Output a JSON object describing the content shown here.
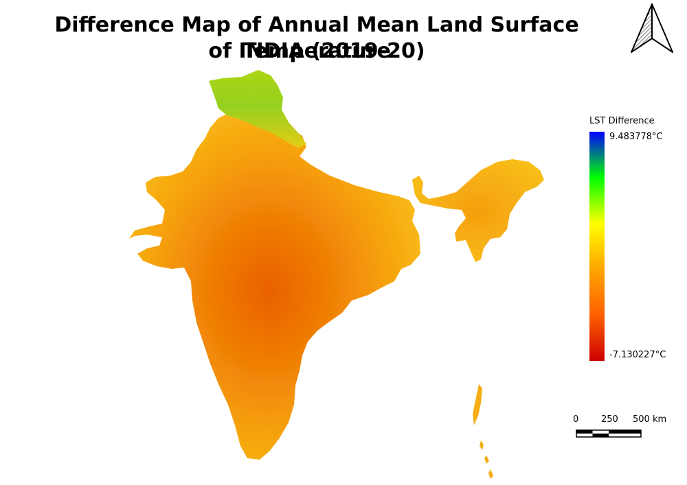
{
  "title": {
    "line1": "Difference Map of Annual Mean Land Surface Temperature",
    "line2": "of INDIA (2019-20)"
  },
  "legend": {
    "title": "LST Difference",
    "max_label": "9.483778°C",
    "min_label": "-7.130227°C",
    "max_value": 9.483778,
    "min_value": -7.130227,
    "colors": [
      "#0000ff",
      "#00ff00",
      "#ffff00",
      "#ffa500",
      "#ff6000",
      "#cc0000"
    ]
  },
  "scale_bar": {
    "labels": [
      "0",
      "250",
      "500 km"
    ]
  },
  "icons": {
    "north_arrow": "north-arrow-icon"
  },
  "map": {
    "region": "India",
    "dominant_color": "#ffa500",
    "hot_color": "#e85a00",
    "cool_color": "#7ee000"
  }
}
